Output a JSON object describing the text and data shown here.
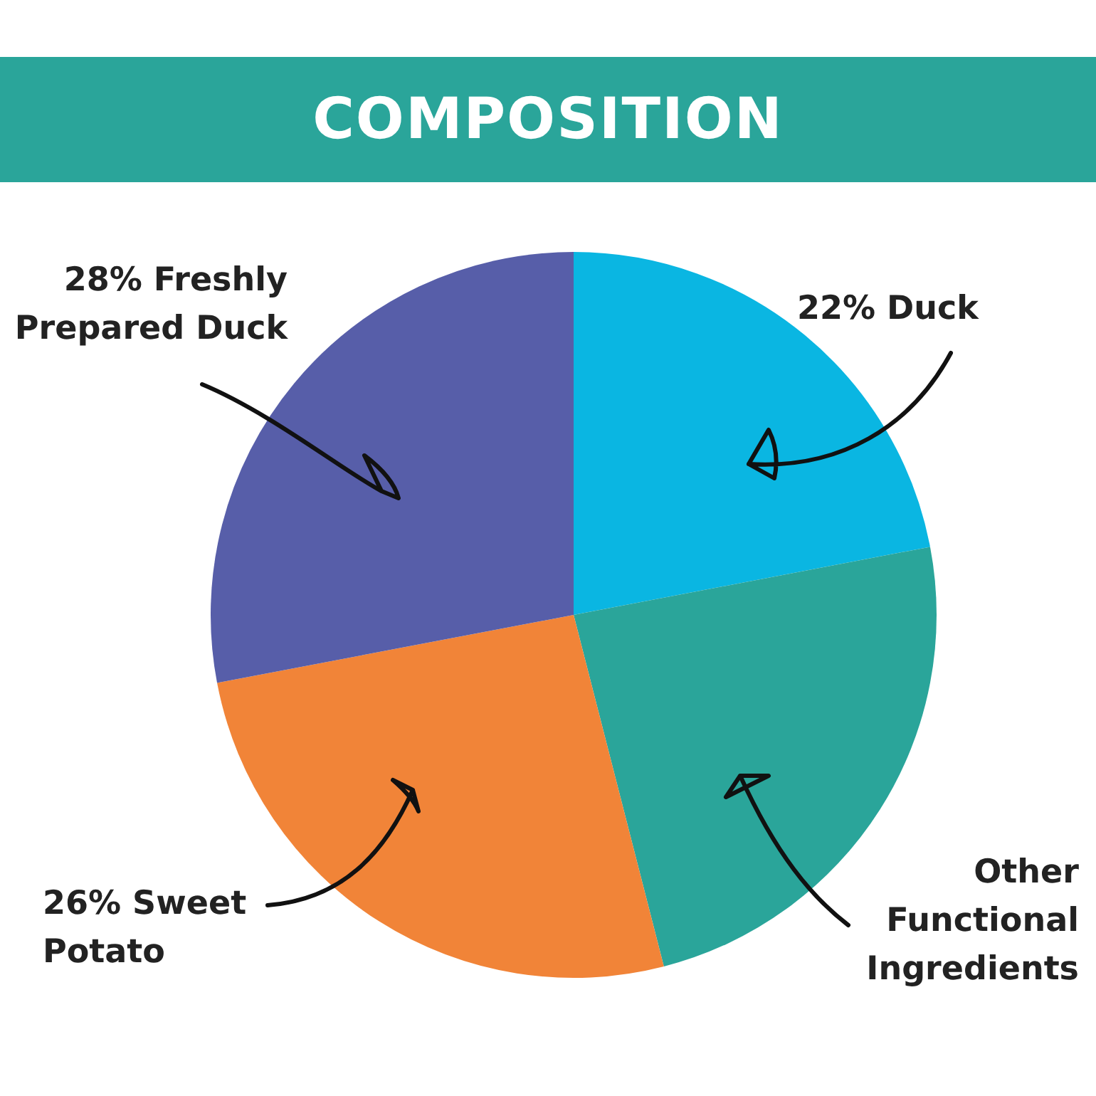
{
  "chart_data": {
    "type": "pie",
    "title": "COMPOSITION",
    "categories": [
      "22% Duck",
      "Other Functional Ingredients",
      "26% Sweet Potato",
      "28% Freshly Prepared Duck"
    ],
    "values": [
      22,
      24,
      26,
      28
    ],
    "colors": [
      "#0ab6e2",
      "#2aa59a",
      "#f18438",
      "#575ea9"
    ],
    "legend": false
  }
}
